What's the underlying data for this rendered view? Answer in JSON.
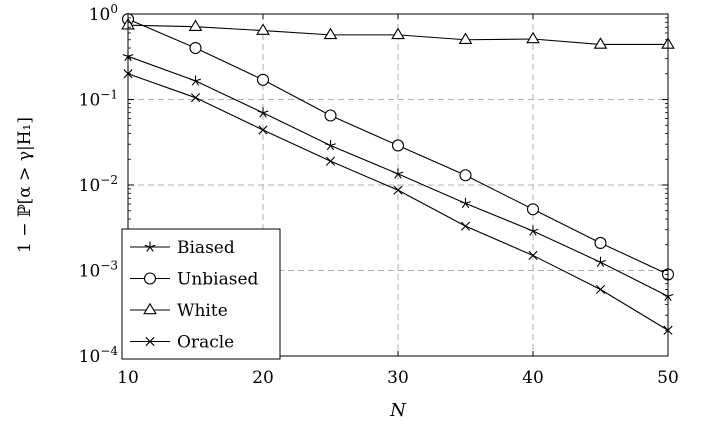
{
  "chart_data": {
    "type": "line",
    "title": "",
    "xlabel": "N",
    "ylabel": "1 − ℙ[α > γ|H₁]",
    "xlim": [
      10,
      50
    ],
    "ylim": [
      0.0001,
      1
    ],
    "yscale": "log",
    "grid": true,
    "legend_position": "bottom-left",
    "x": [
      10,
      15,
      20,
      25,
      30,
      35,
      40,
      45,
      50
    ],
    "x_ticks": [
      "10",
      "20",
      "30",
      "40",
      "50"
    ],
    "y_ticks": [
      {
        "base": "10",
        "exp": "0",
        "value": 1
      },
      {
        "base": "10",
        "exp": "−1",
        "value": 0.1
      },
      {
        "base": "10",
        "exp": "−2",
        "value": 0.01
      },
      {
        "base": "10",
        "exp": "−3",
        "value": 0.001
      },
      {
        "base": "10",
        "exp": "−4",
        "value": 0.0001
      }
    ],
    "series": [
      {
        "name": "Biased",
        "marker": "star",
        "values": [
          0.32,
          0.165,
          0.07,
          0.029,
          0.0135,
          0.0061,
          0.0029,
          0.00125,
          0.0005
        ]
      },
      {
        "name": "Unbiased",
        "marker": "circle",
        "values": [
          0.87,
          0.4,
          0.17,
          0.065,
          0.029,
          0.013,
          0.0052,
          0.0021,
          0.0009
        ]
      },
      {
        "name": "White",
        "marker": "triangle",
        "values": [
          0.74,
          0.71,
          0.64,
          0.57,
          0.57,
          0.5,
          0.51,
          0.44,
          0.44
        ]
      },
      {
        "name": "Oracle",
        "marker": "cross",
        "values": [
          0.2,
          0.105,
          0.044,
          0.019,
          0.0087,
          0.0033,
          0.0015,
          0.0006,
          0.0002
        ]
      }
    ]
  }
}
